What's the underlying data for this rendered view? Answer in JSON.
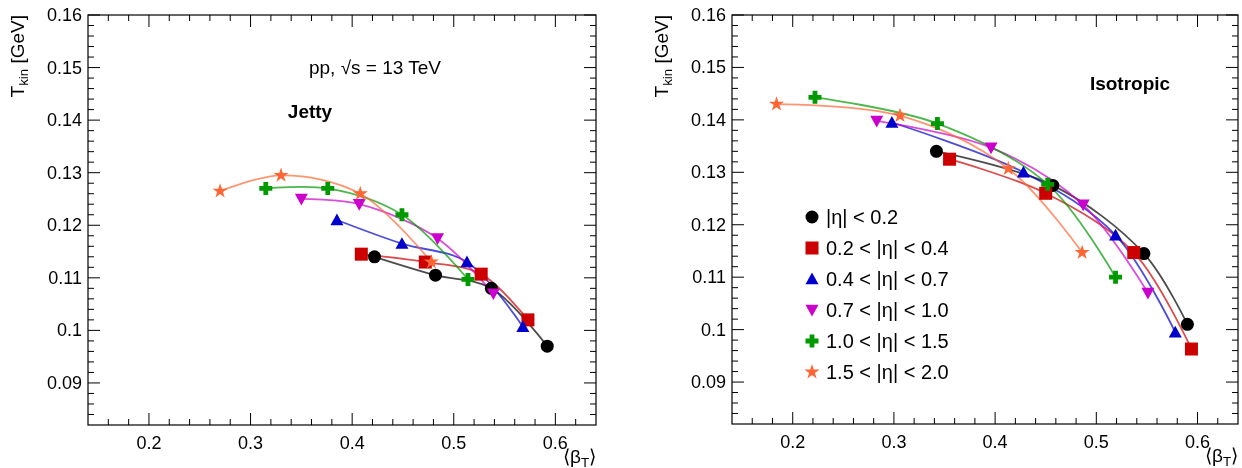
{
  "chart_data": [
    {
      "type": "line",
      "xlabel": "⟨β$_{T}$⟩",
      "ylabel": "T$_{kin}$ [GeV]",
      "xlim": [
        0.14,
        0.64
      ],
      "ylim": [
        0.082,
        0.16
      ],
      "xticks": [
        {
          "value": 0.16,
          "label": null
        },
        {
          "value": 0.18,
          "label": null
        },
        0.2,
        {
          "value": 0.22,
          "label": null
        },
        {
          "value": 0.24,
          "label": null
        },
        {
          "value": 0.26,
          "label": null
        },
        {
          "value": 0.28,
          "label": null
        },
        0.3,
        {
          "value": 0.32,
          "label": null
        },
        {
          "value": 0.34,
          "label": null
        },
        {
          "value": 0.36,
          "label": null
        },
        {
          "value": 0.38,
          "label": null
        },
        0.4,
        {
          "value": 0.42,
          "label": null
        },
        {
          "value": 0.44,
          "label": null
        },
        {
          "value": 0.46,
          "label": null
        },
        {
          "value": 0.48,
          "label": null
        },
        0.5,
        {
          "value": 0.52,
          "label": null
        },
        {
          "value": 0.54,
          "label": null
        },
        {
          "value": 0.56,
          "label": null
        },
        {
          "value": 0.58,
          "label": null
        },
        0.6,
        {
          "value": 0.62,
          "label": null
        }
      ],
      "yticks": [
        {
          "value": 0.084,
          "label": null
        },
        {
          "value": 0.086,
          "label": null
        },
        {
          "value": 0.088,
          "label": null
        },
        0.09,
        {
          "value": 0.092,
          "label": null
        },
        {
          "value": 0.094,
          "label": null
        },
        {
          "value": 0.096,
          "label": null
        },
        {
          "value": 0.098,
          "label": null
        },
        0.1,
        {
          "value": 0.102,
          "label": null
        },
        {
          "value": 0.104,
          "label": null
        },
        {
          "value": 0.106,
          "label": null
        },
        {
          "value": 0.108,
          "label": null
        },
        0.11,
        {
          "value": 0.112,
          "label": null
        },
        {
          "value": 0.114,
          "label": null
        },
        {
          "value": 0.116,
          "label": null
        },
        {
          "value": 0.118,
          "label": null
        },
        0.12,
        {
          "value": 0.122,
          "label": null
        },
        {
          "value": 0.124,
          "label": null
        },
        {
          "value": 0.126,
          "label": null
        },
        {
          "value": 0.128,
          "label": null
        },
        0.13,
        {
          "value": 0.132,
          "label": null
        },
        {
          "value": 0.134,
          "label": null
        },
        {
          "value": 0.136,
          "label": null
        },
        {
          "value": 0.138,
          "label": null
        },
        0.14,
        {
          "value": 0.142,
          "label": null
        },
        {
          "value": 0.144,
          "label": null
        },
        {
          "value": 0.146,
          "label": null
        },
        {
          "value": 0.148,
          "label": null
        },
        0.15,
        {
          "value": 0.152,
          "label": null
        },
        {
          "value": 0.154,
          "label": null
        },
        {
          "value": 0.156,
          "label": null
        },
        {
          "value": 0.158,
          "label": null
        },
        0.16
      ],
      "grid": false,
      "legend": false,
      "annotations": [
        "pp, √s = 13 TeV",
        "Jetty"
      ],
      "series": [
        {
          "color": "#000000",
          "marker": "circle",
          "x": [
            0.422,
            0.482,
            0.537,
            0.592
          ],
          "values": [
            0.114,
            0.1105,
            0.108,
            0.097
          ]
        },
        {
          "color": "#cc0000",
          "marker": "square",
          "x": [
            0.409,
            0.472,
            0.527,
            0.573
          ],
          "values": [
            0.1145,
            0.113,
            0.1107,
            0.102
          ]
        },
        {
          "color": "#0000cc",
          "marker": "triangle",
          "x": [
            0.385,
            0.449,
            0.513,
            0.568
          ],
          "values": [
            0.121,
            0.1165,
            0.113,
            0.1007
          ]
        },
        {
          "color": "#cc00cc",
          "marker": "triangle-down",
          "x": [
            0.35,
            0.407,
            0.484,
            0.539
          ],
          "values": [
            0.125,
            0.124,
            0.1175,
            0.107
          ]
        },
        {
          "color": "#009900",
          "marker": "cross",
          "x": [
            0.315,
            0.376,
            0.449,
            0.514
          ],
          "values": [
            0.127,
            0.127,
            0.122,
            0.1097
          ]
        },
        {
          "color": "#ff6633",
          "marker": "star",
          "x": [
            0.27,
            0.33,
            0.408,
            0.478
          ],
          "values": [
            0.1265,
            0.1295,
            0.126,
            0.113
          ]
        }
      ]
    },
    {
      "type": "line",
      "xlabel": "⟨β$_{T}$⟩",
      "ylabel": "T$_{kin}$ [GeV]",
      "xlim": [
        0.14,
        0.64
      ],
      "ylim": [
        0.082,
        0.16
      ],
      "xticks": [
        {
          "value": 0.16,
          "label": null
        },
        {
          "value": 0.18,
          "label": null
        },
        0.2,
        {
          "value": 0.22,
          "label": null
        },
        {
          "value": 0.24,
          "label": null
        },
        {
          "value": 0.26,
          "label": null
        },
        {
          "value": 0.28,
          "label": null
        },
        0.3,
        {
          "value": 0.32,
          "label": null
        },
        {
          "value": 0.34,
          "label": null
        },
        {
          "value": 0.36,
          "label": null
        },
        {
          "value": 0.38,
          "label": null
        },
        0.4,
        {
          "value": 0.42,
          "label": null
        },
        {
          "value": 0.44,
          "label": null
        },
        {
          "value": 0.46,
          "label": null
        },
        {
          "value": 0.48,
          "label": null
        },
        0.5,
        {
          "value": 0.52,
          "label": null
        },
        {
          "value": 0.54,
          "label": null
        },
        {
          "value": 0.56,
          "label": null
        },
        {
          "value": 0.58,
          "label": null
        },
        0.6,
        {
          "value": 0.62,
          "label": null
        }
      ],
      "yticks": [
        {
          "value": 0.084,
          "label": null
        },
        {
          "value": 0.086,
          "label": null
        },
        {
          "value": 0.088,
          "label": null
        },
        0.09,
        {
          "value": 0.092,
          "label": null
        },
        {
          "value": 0.094,
          "label": null
        },
        {
          "value": 0.096,
          "label": null
        },
        {
          "value": 0.098,
          "label": null
        },
        0.1,
        {
          "value": 0.102,
          "label": null
        },
        {
          "value": 0.104,
          "label": null
        },
        {
          "value": 0.106,
          "label": null
        },
        {
          "value": 0.108,
          "label": null
        },
        0.11,
        {
          "value": 0.112,
          "label": null
        },
        {
          "value": 0.114,
          "label": null
        },
        {
          "value": 0.116,
          "label": null
        },
        {
          "value": 0.118,
          "label": null
        },
        0.12,
        {
          "value": 0.122,
          "label": null
        },
        {
          "value": 0.124,
          "label": null
        },
        {
          "value": 0.126,
          "label": null
        },
        {
          "value": 0.128,
          "label": null
        },
        0.13,
        {
          "value": 0.132,
          "label": null
        },
        {
          "value": 0.134,
          "label": null
        },
        {
          "value": 0.136,
          "label": null
        },
        {
          "value": 0.138,
          "label": null
        },
        0.14,
        {
          "value": 0.142,
          "label": null
        },
        {
          "value": 0.144,
          "label": null
        },
        {
          "value": 0.146,
          "label": null
        },
        {
          "value": 0.148,
          "label": null
        },
        0.15,
        {
          "value": 0.152,
          "label": null
        },
        {
          "value": 0.154,
          "label": null
        },
        {
          "value": 0.156,
          "label": null
        },
        {
          "value": 0.158,
          "label": null
        },
        0.16
      ],
      "grid": false,
      "legend": "left",
      "annotations": [
        "Isotropic"
      ],
      "series": [
        {
          "name": "|η| < 0.2",
          "color": "#000000",
          "marker": "circle",
          "x": [
            0.342,
            0.457,
            0.547,
            0.59
          ],
          "values": [
            0.134,
            0.1275,
            0.1145,
            0.101
          ]
        },
        {
          "name": "0.2 < |η| < 0.4",
          "color": "#cc0000",
          "marker": "square",
          "x": [
            0.355,
            0.45,
            0.537,
            0.594
          ],
          "values": [
            0.1325,
            0.126,
            0.1147,
            0.0963
          ]
        },
        {
          "name": "0.4 < |η| < 0.7",
          "color": "#0000cc",
          "marker": "triangle",
          "x": [
            0.298,
            0.428,
            0.519,
            0.578
          ],
          "values": [
            0.1395,
            0.13,
            0.118,
            0.0995
          ]
        },
        {
          "name": "0.7 < |η| < 1.0",
          "color": "#cc00cc",
          "marker": "triangle-down",
          "x": [
            0.283,
            0.396,
            0.487,
            0.551
          ],
          "values": [
            0.1398,
            0.1347,
            0.1238,
            0.107
          ]
        },
        {
          "name": "1.0 < |η| < 1.5",
          "color": "#009900",
          "marker": "cross",
          "x": [
            0.222,
            0.343,
            0.452,
            0.519
          ],
          "values": [
            0.1443,
            0.1393,
            0.1277,
            0.11
          ]
        },
        {
          "name": "1.5 < |η| < 2.0",
          "color": "#ff6633",
          "marker": "star",
          "x": [
            0.184,
            0.306,
            0.413,
            0.486
          ],
          "values": [
            0.143,
            0.1408,
            0.1307,
            0.1147
          ]
        }
      ]
    }
  ]
}
